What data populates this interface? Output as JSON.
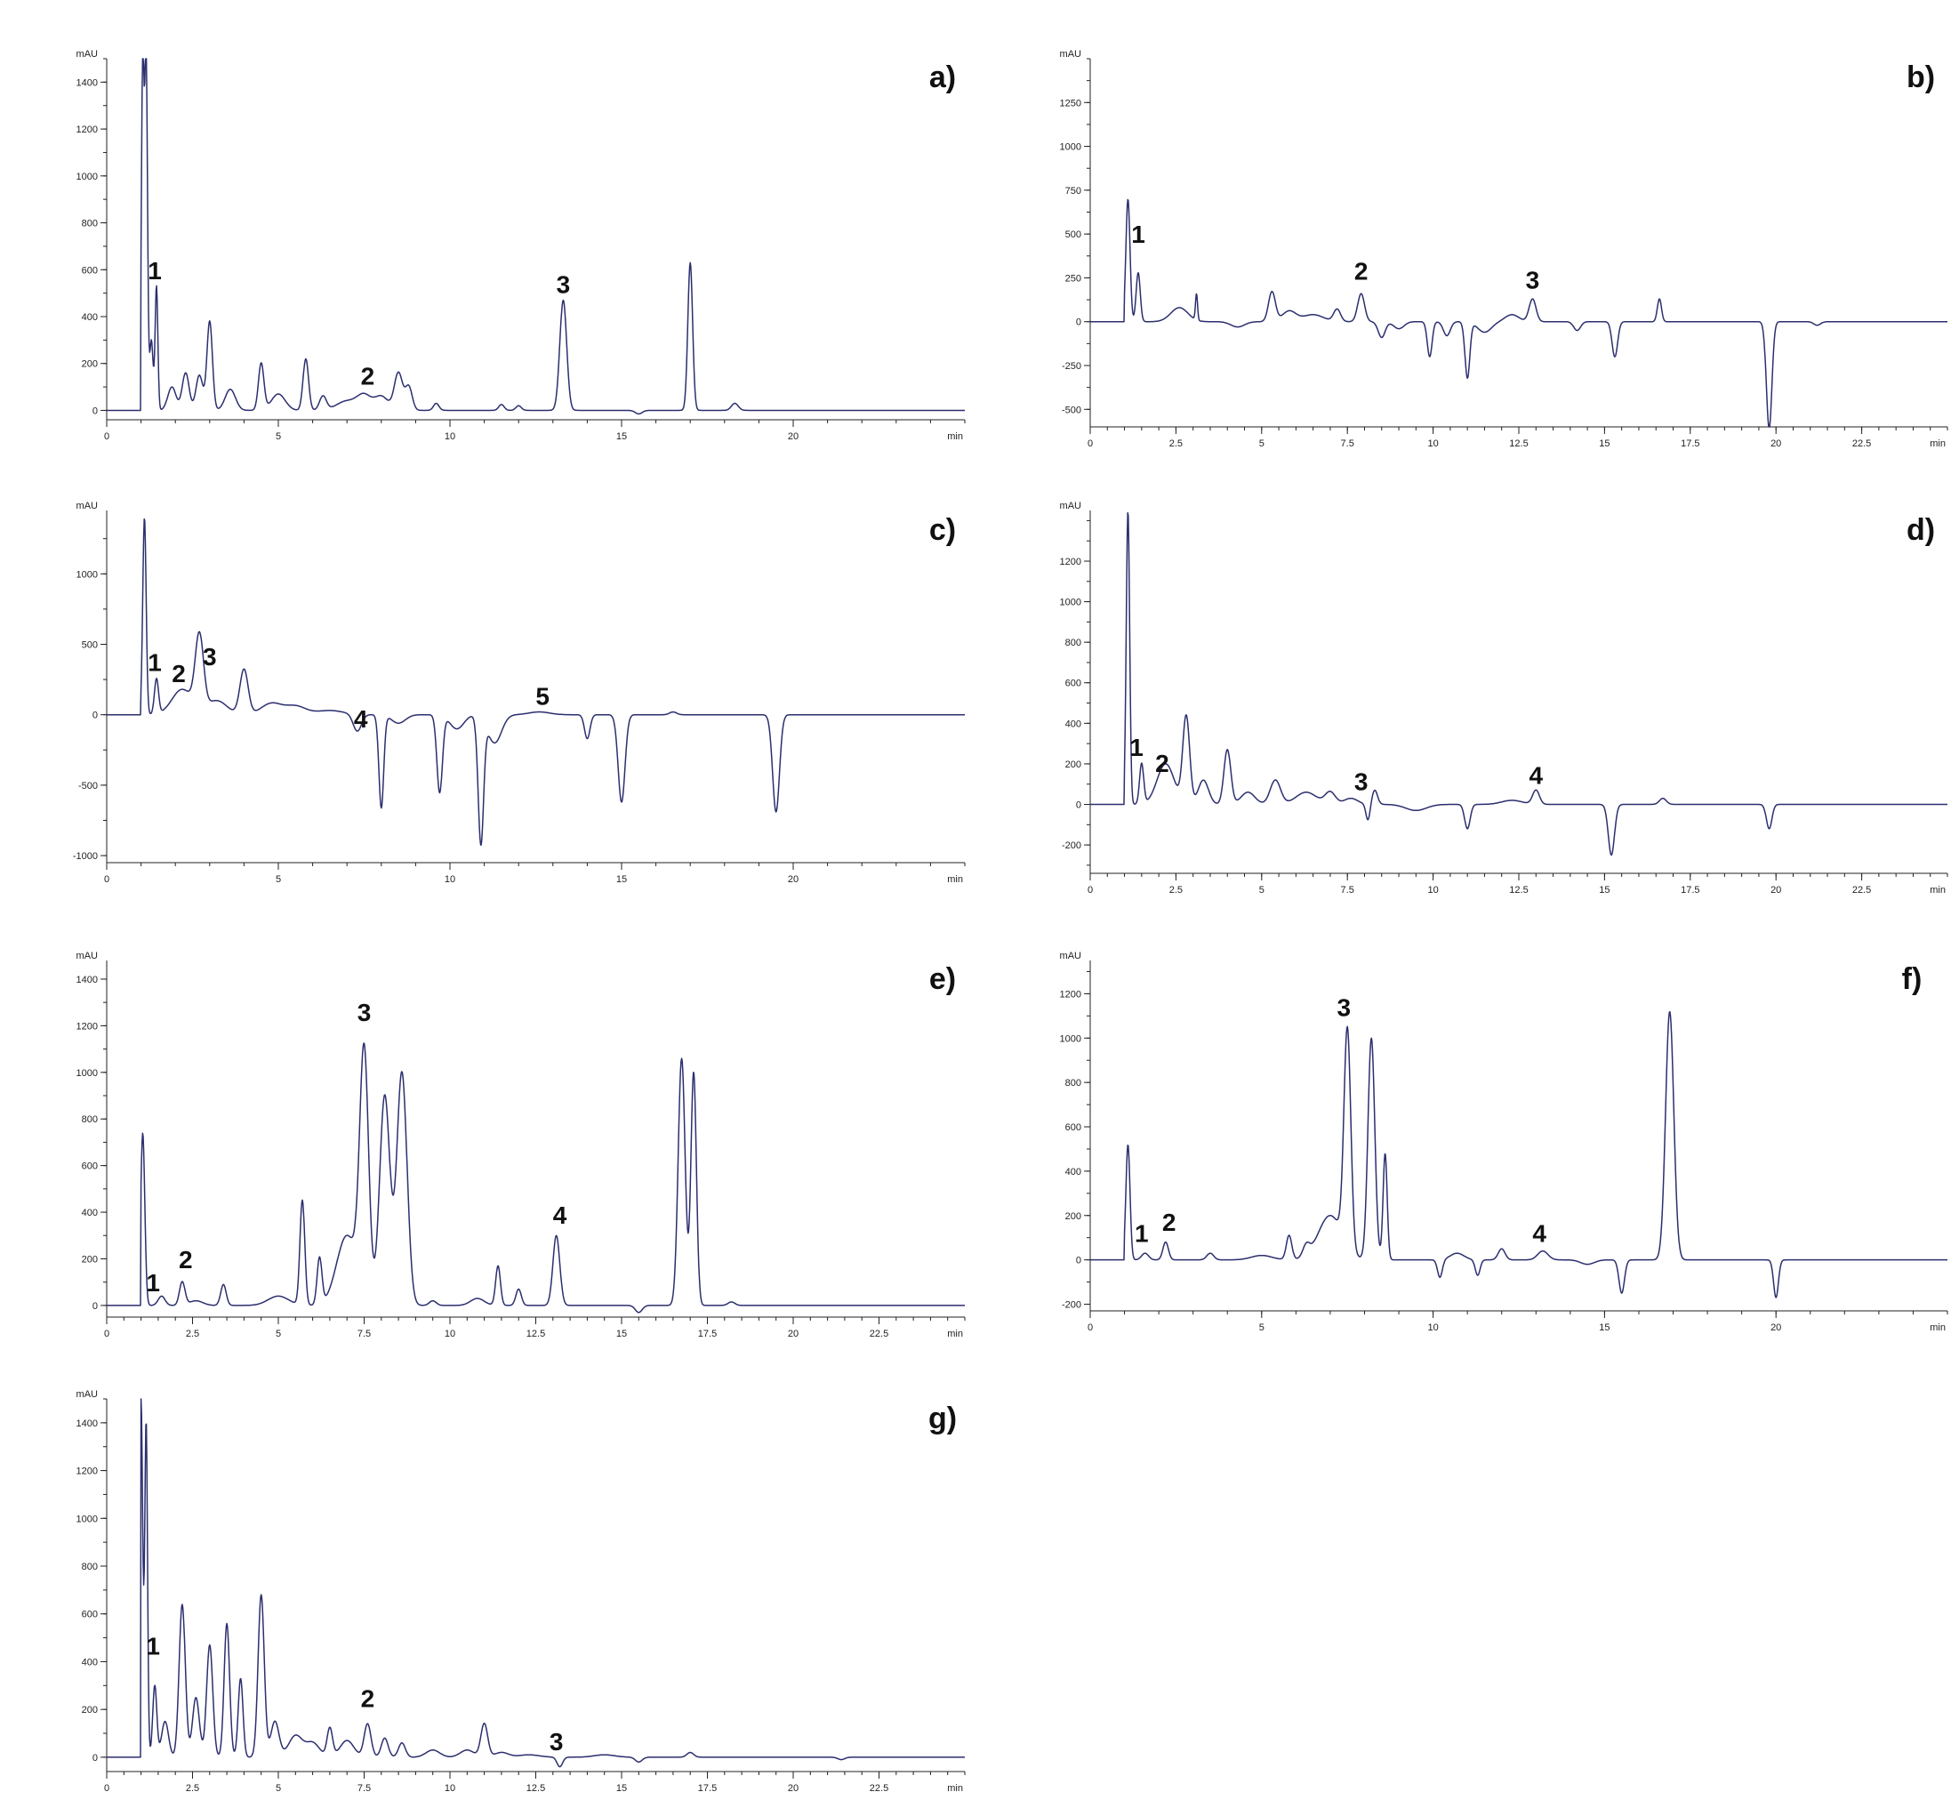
{
  "chart_data": [
    {
      "type": "line",
      "panel_label": "a)",
      "y_unit": "mAU",
      "x_unit": "min",
      "ylim": [
        -40,
        1500
      ],
      "xlim": [
        0,
        25
      ],
      "y_ticks": [
        0,
        200,
        400,
        600,
        800,
        1000,
        1200,
        1400
      ],
      "x_ticks": [
        0,
        5,
        10,
        15,
        20
      ],
      "x_tick_labels": [
        "0",
        "5",
        "10",
        "15",
        "20"
      ],
      "baseline": 0,
      "start": 1.0,
      "peaks": [
        [
          1.05,
          1500,
          0.04
        ],
        [
          1.15,
          1500,
          0.04
        ],
        [
          1.3,
          300,
          0.05
        ],
        [
          1.45,
          530,
          0.04
        ],
        [
          1.9,
          100,
          0.12
        ],
        [
          2.3,
          160,
          0.1
        ],
        [
          2.7,
          150,
          0.1
        ],
        [
          3.0,
          380,
          0.08
        ],
        [
          3.6,
          90,
          0.15
        ],
        [
          4.5,
          200,
          0.08
        ],
        [
          5.0,
          70,
          0.2
        ],
        [
          5.8,
          220,
          0.08
        ],
        [
          6.3,
          60,
          0.1
        ],
        [
          7.0,
          40,
          0.3
        ],
        [
          7.5,
          60,
          0.2
        ],
        [
          8.0,
          60,
          0.2
        ],
        [
          8.5,
          160,
          0.12
        ],
        [
          8.8,
          100,
          0.1
        ],
        [
          9.6,
          30,
          0.08
        ],
        [
          11.5,
          25,
          0.08
        ],
        [
          12.0,
          20,
          0.08
        ],
        [
          13.3,
          470,
          0.1
        ],
        [
          15.5,
          -15,
          0.1
        ],
        [
          17.0,
          630,
          0.07
        ],
        [
          18.3,
          30,
          0.1
        ]
      ],
      "peak_labels": [
        {
          "text": "1",
          "x": 1.4,
          "y": 560
        },
        {
          "text": "2",
          "x": 7.6,
          "y": 110
        },
        {
          "text": "3",
          "x": 13.3,
          "y": 500
        }
      ]
    },
    {
      "type": "line",
      "panel_label": "b)",
      "y_unit": "mAU",
      "x_unit": "min",
      "ylim": [
        -600,
        1500
      ],
      "xlim": [
        0,
        25
      ],
      "y_ticks": [
        -500,
        -250,
        0,
        250,
        500,
        750,
        1000,
        1250
      ],
      "y_tick_labels": [
        "-500",
        "-250",
        "0",
        "250",
        "500",
        "750",
        "1000",
        "1250"
      ],
      "x_ticks": [
        0,
        2.5,
        5,
        7.5,
        10,
        12.5,
        15,
        17.5,
        20,
        22.5
      ],
      "x_tick_labels": [
        "0",
        "2.5",
        "5",
        "7.5",
        "10",
        "12.5",
        "15",
        "17.5",
        "20",
        "22.5"
      ],
      "baseline": 0,
      "start": 1.0,
      "peaks": [
        [
          1.1,
          700,
          0.06
        ],
        [
          1.4,
          280,
          0.06
        ],
        [
          2.6,
          80,
          0.25
        ],
        [
          3.1,
          150,
          0.03
        ],
        [
          4.3,
          -30,
          0.2
        ],
        [
          5.3,
          170,
          0.1
        ],
        [
          5.8,
          60,
          0.2
        ],
        [
          6.5,
          40,
          0.3
        ],
        [
          7.2,
          70,
          0.1
        ],
        [
          7.9,
          160,
          0.1
        ],
        [
          8.5,
          -90,
          0.1
        ],
        [
          9.0,
          -40,
          0.15
        ],
        [
          9.9,
          -200,
          0.07
        ],
        [
          10.4,
          -80,
          0.1
        ],
        [
          11.0,
          -320,
          0.07
        ],
        [
          11.5,
          -60,
          0.2
        ],
        [
          12.3,
          40,
          0.2
        ],
        [
          12.9,
          130,
          0.1
        ],
        [
          14.2,
          -50,
          0.1
        ],
        [
          15.3,
          -200,
          0.08
        ],
        [
          16.6,
          130,
          0.06
        ],
        [
          19.8,
          -610,
          0.08
        ],
        [
          21.2,
          -20,
          0.1
        ]
      ],
      "peak_labels": [
        {
          "text": "1",
          "x": 1.4,
          "y": 450
        },
        {
          "text": "2",
          "x": 7.9,
          "y": 240
        },
        {
          "text": "3",
          "x": 12.9,
          "y": 190
        }
      ]
    },
    {
      "type": "line",
      "panel_label": "c)",
      "y_unit": "mAU",
      "x_unit": "min",
      "ylim": [
        -1050,
        1450
      ],
      "xlim": [
        0,
        25
      ],
      "y_ticks": [
        -1000,
        -500,
        0,
        500,
        1000
      ],
      "y_tick_labels": [
        "-1000",
        "-500",
        "0",
        "500",
        "1000"
      ],
      "x_ticks": [
        0,
        5,
        10,
        15,
        20
      ],
      "x_tick_labels": [
        "0",
        "5",
        "10",
        "15",
        "20"
      ],
      "baseline": 0,
      "start": 1.0,
      "peaks": [
        [
          1.1,
          1400,
          0.05
        ],
        [
          1.45,
          250,
          0.06
        ],
        [
          2.2,
          180,
          0.3
        ],
        [
          2.7,
          520,
          0.12
        ],
        [
          3.2,
          100,
          0.3
        ],
        [
          4.0,
          320,
          0.12
        ],
        [
          4.8,
          80,
          0.3
        ],
        [
          5.5,
          60,
          0.3
        ],
        [
          6.5,
          30,
          0.4
        ],
        [
          7.3,
          -120,
          0.12
        ],
        [
          8.0,
          -660,
          0.07
        ],
        [
          8.5,
          -60,
          0.2
        ],
        [
          9.7,
          -550,
          0.08
        ],
        [
          10.2,
          -100,
          0.2
        ],
        [
          10.9,
          -900,
          0.08
        ],
        [
          11.3,
          -200,
          0.2
        ],
        [
          12.6,
          20,
          0.3
        ],
        [
          14.0,
          -170,
          0.08
        ],
        [
          15.0,
          -620,
          0.1
        ],
        [
          16.5,
          20,
          0.1
        ],
        [
          19.5,
          -690,
          0.1
        ]
      ],
      "peak_labels": [
        {
          "text": "1",
          "x": 1.4,
          "y": 310
        },
        {
          "text": "2",
          "x": 2.1,
          "y": 230
        },
        {
          "text": "3",
          "x": 3.0,
          "y": 350
        },
        {
          "text": "4",
          "x": 7.4,
          "y": -90
        },
        {
          "text": "5",
          "x": 12.7,
          "y": 70
        }
      ]
    },
    {
      "type": "line",
      "panel_label": "d)",
      "y_unit": "mAU",
      "x_unit": "min",
      "ylim": [
        -340,
        1450
      ],
      "xlim": [
        0,
        25
      ],
      "y_ticks": [
        -200,
        0,
        200,
        400,
        600,
        800,
        1000,
        1200
      ],
      "y_tick_labels": [
        "-200",
        "0",
        "200",
        "400",
        "600",
        "800",
        "1000",
        "1200"
      ],
      "x_ticks": [
        0,
        2.5,
        5,
        7.5,
        10,
        12.5,
        15,
        17.5,
        20,
        22.5
      ],
      "x_tick_labels": [
        "0",
        "2.5",
        "5",
        "7.5",
        "10",
        "12.5",
        "15",
        "17.5",
        "20",
        "22.5"
      ],
      "baseline": 0,
      "start": 1.0,
      "peaks": [
        [
          1.1,
          1450,
          0.05
        ],
        [
          1.5,
          200,
          0.06
        ],
        [
          2.2,
          200,
          0.25
        ],
        [
          2.8,
          430,
          0.1
        ],
        [
          3.3,
          120,
          0.15
        ],
        [
          4.0,
          270,
          0.1
        ],
        [
          4.6,
          60,
          0.2
        ],
        [
          5.4,
          120,
          0.15
        ],
        [
          6.3,
          60,
          0.3
        ],
        [
          7.0,
          60,
          0.15
        ],
        [
          7.6,
          30,
          0.2
        ],
        [
          8.3,
          70,
          0.08
        ],
        [
          8.1,
          -80,
          0.06
        ],
        [
          9.5,
          -30,
          0.3
        ],
        [
          11.0,
          -120,
          0.08
        ],
        [
          12.3,
          20,
          0.3
        ],
        [
          13.0,
          70,
          0.1
        ],
        [
          15.2,
          -250,
          0.09
        ],
        [
          16.7,
          30,
          0.1
        ],
        [
          19.8,
          -120,
          0.08
        ]
      ],
      "peak_labels": [
        {
          "text": "1",
          "x": 1.35,
          "y": 240
        },
        {
          "text": "2",
          "x": 2.1,
          "y": 160
        },
        {
          "text": "3",
          "x": 7.9,
          "y": 70
        },
        {
          "text": "4",
          "x": 13.0,
          "y": 100
        }
      ]
    },
    {
      "type": "line",
      "panel_label": "e)",
      "y_unit": "mAU",
      "x_unit": "min",
      "ylim": [
        -50,
        1480
      ],
      "xlim": [
        0,
        25
      ],
      "y_ticks": [
        0,
        200,
        400,
        600,
        800,
        1000,
        1200,
        1400
      ],
      "x_ticks": [
        0,
        2.5,
        5,
        7.5,
        10,
        12.5,
        15,
        17.5,
        20,
        22.5
      ],
      "x_tick_labels": [
        "0",
        "2.5",
        "5",
        "7.5",
        "10",
        "12.5",
        "15",
        "17.5",
        "20",
        "22.5"
      ],
      "baseline": 0,
      "start": 1.0,
      "peaks": [
        [
          1.05,
          740,
          0.06
        ],
        [
          1.6,
          40,
          0.1
        ],
        [
          2.2,
          100,
          0.08
        ],
        [
          2.6,
          20,
          0.2
        ],
        [
          3.4,
          90,
          0.08
        ],
        [
          5.0,
          40,
          0.3
        ],
        [
          5.7,
          450,
          0.07
        ],
        [
          6.2,
          200,
          0.07
        ],
        [
          7.0,
          300,
          0.3
        ],
        [
          7.5,
          1050,
          0.13
        ],
        [
          8.1,
          900,
          0.15
        ],
        [
          8.6,
          1000,
          0.15
        ],
        [
          9.5,
          20,
          0.1
        ],
        [
          10.8,
          30,
          0.2
        ],
        [
          11.4,
          170,
          0.07
        ],
        [
          12.0,
          70,
          0.08
        ],
        [
          13.1,
          300,
          0.1
        ],
        [
          15.5,
          -30,
          0.1
        ],
        [
          16.75,
          1060,
          0.1
        ],
        [
          17.1,
          1000,
          0.08
        ],
        [
          18.2,
          15,
          0.1
        ]
      ],
      "peak_labels": [
        {
          "text": "1",
          "x": 1.35,
          "y": 60
        },
        {
          "text": "2",
          "x": 2.3,
          "y": 160
        },
        {
          "text": "3",
          "x": 7.5,
          "y": 1220
        },
        {
          "text": "4",
          "x": 13.2,
          "y": 350
        }
      ]
    },
    {
      "type": "line",
      "panel_label": "f)",
      "y_unit": "mAU",
      "x_unit": "min",
      "ylim": [
        -230,
        1350
      ],
      "xlim": [
        0,
        25
      ],
      "y_ticks": [
        -200,
        0,
        200,
        400,
        600,
        800,
        1000,
        1200
      ],
      "y_tick_labels": [
        "-200",
        "0",
        "200",
        "400",
        "600",
        "800",
        "1000",
        "1200"
      ],
      "x_ticks": [
        0,
        5,
        10,
        15,
        20
      ],
      "x_tick_labels": [
        "0",
        "5",
        "10",
        "15",
        "20"
      ],
      "baseline": 0,
      "start": 1.0,
      "peaks": [
        [
          1.1,
          520,
          0.06
        ],
        [
          1.6,
          30,
          0.1
        ],
        [
          2.2,
          80,
          0.08
        ],
        [
          3.5,
          30,
          0.1
        ],
        [
          5.0,
          20,
          0.3
        ],
        [
          5.8,
          110,
          0.08
        ],
        [
          6.3,
          50,
          0.1
        ],
        [
          7.0,
          200,
          0.35
        ],
        [
          7.5,
          980,
          0.1
        ],
        [
          8.2,
          1000,
          0.1
        ],
        [
          8.6,
          480,
          0.06
        ],
        [
          10.2,
          -80,
          0.07
        ],
        [
          10.7,
          30,
          0.2
        ],
        [
          11.3,
          -70,
          0.07
        ],
        [
          12.0,
          50,
          0.1
        ],
        [
          13.2,
          40,
          0.15
        ],
        [
          14.5,
          -20,
          0.2
        ],
        [
          15.5,
          -150,
          0.08
        ],
        [
          16.9,
          1120,
          0.12
        ],
        [
          20.0,
          -170,
          0.07
        ]
      ],
      "peak_labels": [
        {
          "text": "1",
          "x": 1.5,
          "y": 80
        },
        {
          "text": "2",
          "x": 2.3,
          "y": 130
        },
        {
          "text": "3",
          "x": 7.4,
          "y": 1100
        },
        {
          "text": "4",
          "x": 13.1,
          "y": 80
        }
      ]
    },
    {
      "type": "line",
      "panel_label": "g)",
      "y_unit": "mAU",
      "x_unit": "min",
      "ylim": [
        -60,
        1500
      ],
      "xlim": [
        0,
        25
      ],
      "y_ticks": [
        0,
        200,
        400,
        600,
        800,
        1000,
        1200,
        1400
      ],
      "x_ticks": [
        0,
        2.5,
        5,
        7.5,
        10,
        12.5,
        15,
        17.5,
        20,
        22.5
      ],
      "x_tick_labels": [
        "0",
        "2.5",
        "5",
        "7.5",
        "10",
        "12.5",
        "15",
        "17.5",
        "20",
        "22.5"
      ],
      "baseline": 0,
      "start": 1.0,
      "peaks": [
        [
          1.0,
          1500,
          0.05
        ],
        [
          1.15,
          1400,
          0.04
        ],
        [
          1.4,
          300,
          0.06
        ],
        [
          1.7,
          150,
          0.1
        ],
        [
          2.2,
          640,
          0.09
        ],
        [
          2.6,
          250,
          0.1
        ],
        [
          3.0,
          470,
          0.09
        ],
        [
          3.5,
          560,
          0.08
        ],
        [
          3.9,
          330,
          0.07
        ],
        [
          4.5,
          680,
          0.09
        ],
        [
          4.9,
          150,
          0.12
        ],
        [
          5.5,
          90,
          0.2
        ],
        [
          6.0,
          60,
          0.2
        ],
        [
          6.5,
          120,
          0.08
        ],
        [
          7.0,
          70,
          0.2
        ],
        [
          7.6,
          140,
          0.1
        ],
        [
          8.1,
          80,
          0.1
        ],
        [
          8.6,
          60,
          0.1
        ],
        [
          9.5,
          30,
          0.2
        ],
        [
          10.5,
          30,
          0.2
        ],
        [
          11.0,
          140,
          0.1
        ],
        [
          11.5,
          20,
          0.2
        ],
        [
          12.3,
          10,
          0.3
        ],
        [
          13.2,
          -40,
          0.08
        ],
        [
          14.5,
          10,
          0.3
        ],
        [
          15.5,
          -20,
          0.1
        ],
        [
          17.0,
          20,
          0.1
        ],
        [
          21.4,
          -10,
          0.1
        ]
      ],
      "peak_labels": [
        {
          "text": "1",
          "x": 1.35,
          "y": 430
        },
        {
          "text": "2",
          "x": 7.6,
          "y": 210
        },
        {
          "text": "3",
          "x": 13.1,
          "y": 30
        }
      ]
    }
  ]
}
